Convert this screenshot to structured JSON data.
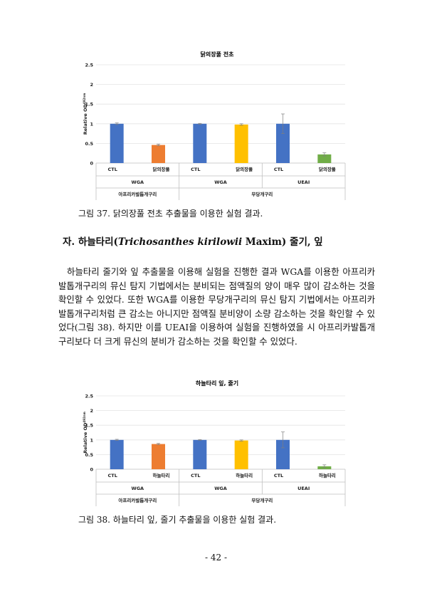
{
  "figure1": {
    "caption": "그림 37. 닭의장풀 전초 추출물을 이용한 실험 결과.",
    "chart_data": {
      "type": "bar",
      "title": "닭의장풀 전초",
      "ylabel": "Relative OD",
      "ylabel_sup": "492nm",
      "ylim": [
        0,
        2.5
      ],
      "yticks": [
        "0",
        "0.5",
        "1",
        "1.5",
        "2",
        "2.5"
      ],
      "categories": [
        "CTL",
        "닭의장풀",
        "CTL",
        "닭의장풀",
        "CTL",
        "닭의장풀"
      ],
      "values": [
        1.0,
        0.46,
        1.0,
        0.98,
        1.0,
        0.22
      ],
      "errors": [
        0.02,
        0.02,
        0.01,
        0.02,
        0.25,
        0.04
      ],
      "bar_colors": [
        "#4472c4",
        "#ed7d31",
        "#4472c4",
        "#ffc000",
        "#4472c4",
        "#70ad47"
      ],
      "group_labels": [
        "WGA",
        "WGA",
        "UEAI"
      ],
      "species_labels": [
        "아프리카발톱개구리",
        "무당개구리"
      ]
    }
  },
  "section": {
    "heading_prefix": "자. 하늘타리(",
    "heading_italic": "Trichosanthes kirilowii",
    "heading_suffix": " Maxim) 줄기, 잎",
    "paragraph": "하늘타리 줄기와 잎 추출물을 이용해 실험을 진행한 결과 WGA를 이용한 아프리카발톱개구리의 뮤신 탐지 기법에서는 분비되는 점액질의 양이 매우 많이 감소하는 것을 확인할 수 있었다. 또한 WGA를 이용한 무당개구리의 뮤신 탐지 기법에서는 아프리카발톱개구리처럼 큰 감소는 아니지만 점액질 분비양이 소량 감소하는 것을 확인할 수 있었다(그림 38). 하지만 이를 UEAI을 이용하여 실험을 진행하였을 시 아프리카발톱개구리보다 더 크게 뮤신의 분비가 감소하는 것을 확인할 수 있었다."
  },
  "figure2": {
    "caption": "그림 38. 하늘타리 잎, 줄기 추출물을 이용한 실험 결과.",
    "chart_data": {
      "type": "bar",
      "title": "하늘타리 잎, 줄기",
      "ylabel": "Relative OD",
      "ylabel_sup": "492nm",
      "ylim": [
        0,
        2.5
      ],
      "yticks": [
        "0",
        "0.5",
        "1",
        "1.5",
        "2",
        "2.5"
      ],
      "categories": [
        "CTL",
        "하늘타리",
        "CTL",
        "하늘타리",
        "CTL",
        "하늘타리"
      ],
      "values": [
        1.0,
        0.86,
        1.0,
        0.98,
        1.0,
        0.1
      ],
      "errors": [
        0.02,
        0.02,
        0.01,
        0.02,
        0.27,
        0.05
      ],
      "bar_colors": [
        "#4472c4",
        "#ed7d31",
        "#4472c4",
        "#ffc000",
        "#4472c4",
        "#70ad47"
      ],
      "group_labels": [
        "WGA",
        "WGA",
        "UEAI"
      ],
      "species_labels": [
        "아프리카발톱개구리",
        "무당개구리"
      ]
    }
  },
  "page_number": "- 42 -"
}
